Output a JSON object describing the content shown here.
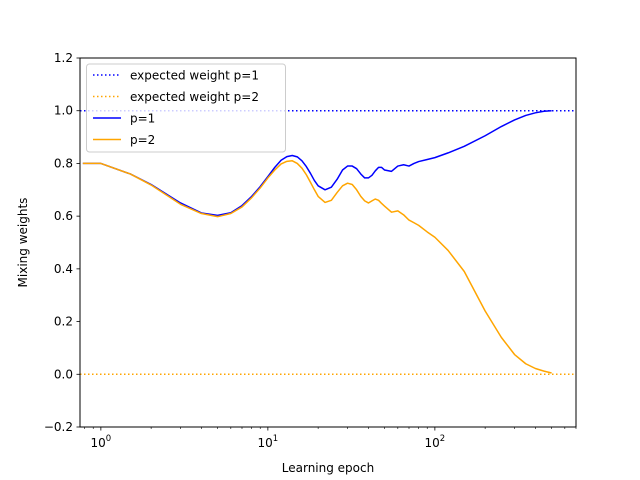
{
  "chart_data": {
    "type": "line",
    "title": "",
    "xlabel": "Learning epoch",
    "ylabel": "Mixing weights",
    "xscale": "log",
    "xlim": [
      0.75,
      700
    ],
    "ylim": [
      -0.2,
      1.2
    ],
    "x_ticks": [
      {
        "value": 1,
        "base": "10",
        "exp": "0"
      },
      {
        "value": 10,
        "base": "10",
        "exp": "1"
      },
      {
        "value": 100,
        "base": "10",
        "exp": "2"
      }
    ],
    "y_ticks": [
      "−0.2",
      "0.0",
      "0.2",
      "0.4",
      "0.6",
      "0.8",
      "1.0",
      "1.2"
    ],
    "y_tick_values": [
      -0.2,
      0.0,
      0.2,
      0.4,
      0.6,
      0.8,
      1.0,
      1.2
    ],
    "legend_position": "top-left",
    "series": [
      {
        "name": "expected weight p=1",
        "color": "#0000ff",
        "style": "dotted",
        "kind": "hline",
        "value": 1.0
      },
      {
        "name": "expected weight p=2",
        "color": "#ffa500",
        "style": "dotted",
        "kind": "hline",
        "value": 0.0
      },
      {
        "name": "p=1",
        "color": "#0000ff",
        "style": "solid",
        "kind": "line",
        "x": [
          0.78,
          1.0,
          1.5,
          2,
          3,
          4,
          5,
          6,
          7,
          8,
          9,
          10,
          11,
          12,
          13,
          14,
          15,
          16,
          17,
          18,
          19,
          20,
          22,
          24,
          26,
          28,
          30,
          32,
          34,
          36,
          38,
          40,
          42,
          44,
          46,
          48,
          50,
          55,
          60,
          65,
          70,
          75,
          80,
          90,
          100,
          120,
          150,
          200,
          250,
          300,
          350,
          400,
          450,
          500
        ],
        "y": [
          0.8,
          0.8,
          0.76,
          0.72,
          0.65,
          0.612,
          0.603,
          0.613,
          0.64,
          0.675,
          0.712,
          0.75,
          0.785,
          0.812,
          0.826,
          0.83,
          0.825,
          0.81,
          0.788,
          0.762,
          0.735,
          0.715,
          0.7,
          0.71,
          0.74,
          0.775,
          0.79,
          0.79,
          0.78,
          0.76,
          0.745,
          0.745,
          0.755,
          0.772,
          0.785,
          0.785,
          0.775,
          0.77,
          0.79,
          0.795,
          0.79,
          0.8,
          0.807,
          0.815,
          0.822,
          0.84,
          0.865,
          0.905,
          0.94,
          0.965,
          0.982,
          0.992,
          0.998,
          1.0
        ]
      },
      {
        "name": "p=2",
        "color": "#ffa500",
        "style": "solid",
        "kind": "line",
        "x": [
          0.78,
          1.0,
          1.5,
          2,
          3,
          4,
          5,
          6,
          7,
          8,
          9,
          10,
          11,
          12,
          13,
          14,
          15,
          16,
          17,
          18,
          19,
          20,
          22,
          24,
          26,
          28,
          30,
          32,
          34,
          36,
          38,
          40,
          42,
          44,
          46,
          48,
          50,
          55,
          60,
          65,
          70,
          75,
          80,
          90,
          100,
          120,
          150,
          200,
          250,
          300,
          350,
          400,
          450,
          500
        ],
        "y": [
          0.8,
          0.8,
          0.76,
          0.718,
          0.645,
          0.61,
          0.598,
          0.61,
          0.635,
          0.67,
          0.707,
          0.745,
          0.775,
          0.798,
          0.808,
          0.81,
          0.8,
          0.782,
          0.757,
          0.728,
          0.7,
          0.675,
          0.652,
          0.66,
          0.69,
          0.715,
          0.725,
          0.72,
          0.7,
          0.675,
          0.658,
          0.65,
          0.658,
          0.665,
          0.66,
          0.648,
          0.638,
          0.615,
          0.62,
          0.605,
          0.585,
          0.575,
          0.565,
          0.54,
          0.52,
          0.47,
          0.39,
          0.24,
          0.14,
          0.075,
          0.04,
          0.022,
          0.012,
          0.005
        ]
      }
    ]
  }
}
